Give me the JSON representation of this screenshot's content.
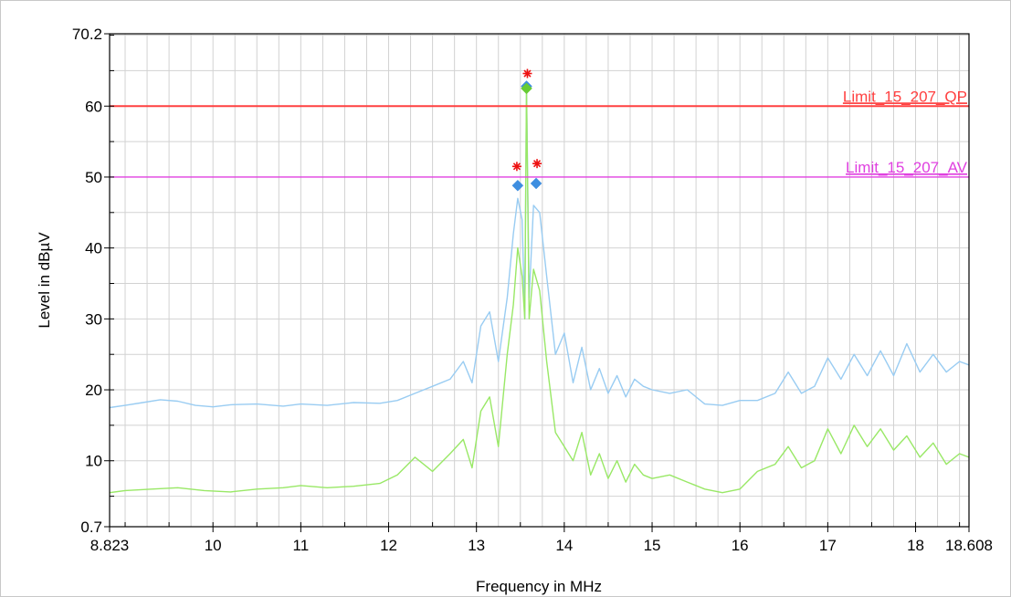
{
  "chart_data": {
    "type": "line",
    "xlabel": "Frequency in MHz",
    "ylabel": "Level in dBµV",
    "xlim": [
      8.823,
      18.608
    ],
    "ylim": [
      0.7,
      70.2
    ],
    "x_tick_labels": [
      {
        "value": 8.823,
        "label": "8.823"
      },
      {
        "value": 10,
        "label": "10"
      },
      {
        "value": 11,
        "label": "11"
      },
      {
        "value": 12,
        "label": "12"
      },
      {
        "value": 13,
        "label": "13"
      },
      {
        "value": 14,
        "label": "14"
      },
      {
        "value": 15,
        "label": "15"
      },
      {
        "value": 16,
        "label": "16"
      },
      {
        "value": 17,
        "label": "17"
      },
      {
        "value": 18,
        "label": "18"
      },
      {
        "value": 18.608,
        "label": "18.608"
      }
    ],
    "y_tick_labels": [
      {
        "value": 0.7,
        "label": "0.7"
      },
      {
        "value": 10,
        "label": "10"
      },
      {
        "value": 20,
        "label": "20"
      },
      {
        "value": 30,
        "label": "30"
      },
      {
        "value": 40,
        "label": "40"
      },
      {
        "value": 50,
        "label": "50"
      },
      {
        "value": 60,
        "label": "60"
      },
      {
        "value": 70.2,
        "label": "70.2"
      }
    ],
    "grid": true,
    "limits": [
      {
        "name": "Limit_15_207_QP",
        "value": 60,
        "color": "#ff4040"
      },
      {
        "name": "Limit_15_207_AV",
        "value": 50,
        "color": "#e040e0"
      }
    ],
    "series": [
      {
        "color": "#99ccf2",
        "x": [
          8.823,
          9.0,
          9.2,
          9.4,
          9.6,
          9.8,
          10.0,
          10.2,
          10.5,
          10.8,
          11.0,
          11.3,
          11.6,
          11.9,
          12.1,
          12.3,
          12.5,
          12.7,
          12.85,
          12.95,
          13.05,
          13.15,
          13.25,
          13.35,
          13.42,
          13.47,
          13.52,
          13.55,
          13.57,
          13.6,
          13.65,
          13.72,
          13.8,
          13.9,
          14.0,
          14.1,
          14.2,
          14.3,
          14.4,
          14.5,
          14.6,
          14.7,
          14.8,
          14.9,
          15.0,
          15.2,
          15.4,
          15.6,
          15.8,
          16.0,
          16.2,
          16.4,
          16.55,
          16.7,
          16.85,
          17.0,
          17.15,
          17.3,
          17.45,
          17.6,
          17.75,
          17.9,
          18.05,
          18.2,
          18.35,
          18.5,
          18.608
        ],
        "values": [
          17.5,
          17.8,
          18.2,
          18.6,
          18.4,
          17.8,
          17.6,
          17.9,
          18.0,
          17.7,
          18.0,
          17.8,
          18.2,
          18.1,
          18.5,
          19.5,
          20.5,
          21.5,
          24.0,
          21.0,
          29.0,
          31.0,
          24.0,
          33.0,
          42.0,
          47.0,
          44.0,
          30.0,
          63.0,
          33.0,
          46.0,
          45.0,
          36.0,
          25.0,
          28.0,
          21.0,
          26.0,
          20.0,
          23.0,
          19.5,
          22.0,
          19.0,
          21.5,
          20.5,
          20.0,
          19.5,
          20.0,
          18.0,
          17.8,
          18.5,
          18.5,
          19.5,
          22.5,
          19.5,
          20.5,
          24.5,
          21.5,
          25.0,
          22.0,
          25.5,
          22.0,
          26.5,
          22.5,
          25.0,
          22.5,
          24.0,
          23.5
        ]
      },
      {
        "color": "#99e866",
        "x": [
          8.823,
          9.0,
          9.3,
          9.6,
          9.9,
          10.2,
          10.5,
          10.8,
          11.0,
          11.3,
          11.6,
          11.9,
          12.1,
          12.3,
          12.5,
          12.7,
          12.85,
          12.95,
          13.05,
          13.15,
          13.25,
          13.35,
          13.42,
          13.47,
          13.52,
          13.55,
          13.57,
          13.6,
          13.65,
          13.72,
          13.8,
          13.9,
          14.0,
          14.1,
          14.2,
          14.3,
          14.4,
          14.5,
          14.6,
          14.7,
          14.8,
          14.9,
          15.0,
          15.2,
          15.4,
          15.6,
          15.8,
          16.0,
          16.2,
          16.4,
          16.55,
          16.7,
          16.85,
          17.0,
          17.15,
          17.3,
          17.45,
          17.6,
          17.75,
          17.9,
          18.05,
          18.2,
          18.35,
          18.5,
          18.608
        ],
        "values": [
          5.5,
          5.8,
          6.0,
          6.2,
          5.8,
          5.6,
          6.0,
          6.2,
          6.5,
          6.2,
          6.4,
          6.8,
          8.0,
          10.5,
          8.5,
          11.0,
          13.0,
          9.0,
          17.0,
          19.0,
          12.0,
          25.0,
          32.0,
          40.0,
          36.0,
          30.0,
          62.5,
          30.0,
          37.0,
          34.0,
          24.0,
          14.0,
          12.0,
          10.0,
          14.0,
          8.0,
          11.0,
          7.5,
          10.0,
          7.0,
          9.5,
          8.0,
          7.5,
          8.0,
          7.0,
          6.0,
          5.5,
          6.0,
          8.5,
          9.5,
          12.0,
          9.0,
          10.0,
          14.5,
          11.0,
          15.0,
          12.0,
          14.5,
          11.5,
          13.5,
          10.5,
          12.5,
          9.5,
          11.0,
          10.5
        ]
      }
    ],
    "markers": [
      {
        "shape": "diamond",
        "color": "#3e8ee0",
        "x": 13.47,
        "y": 48.8
      },
      {
        "shape": "diamond",
        "color": "#3e8ee0",
        "x": 13.68,
        "y": 49.1
      },
      {
        "shape": "diamond",
        "color": "#3e8ee0",
        "x": 13.57,
        "y": 62.8
      },
      {
        "shape": "diamond",
        "color": "#66cc33",
        "x": 13.57,
        "y": 62.5
      },
      {
        "shape": "asterisk",
        "color": "#ee1111",
        "x": 13.46,
        "y": 51.5
      },
      {
        "shape": "asterisk",
        "color": "#ee1111",
        "x": 13.58,
        "y": 64.6
      },
      {
        "shape": "asterisk",
        "color": "#ee1111",
        "x": 13.69,
        "y": 51.9
      }
    ]
  }
}
